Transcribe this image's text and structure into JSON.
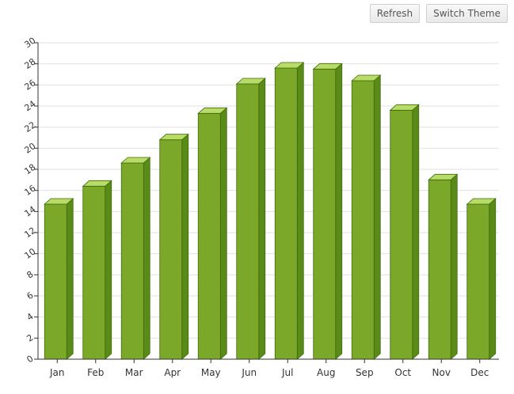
{
  "toolbar": {
    "refresh_label": "Refresh",
    "switch_theme_label": "Switch Theme"
  },
  "chart_data": {
    "type": "bar",
    "title": "",
    "xlabel": "",
    "ylabel": "",
    "categories": [
      "Jan",
      "Feb",
      "Mar",
      "Apr",
      "May",
      "Jun",
      "Jul",
      "Aug",
      "Sep",
      "Oct",
      "Nov",
      "Dec"
    ],
    "values": [
      14.7,
      16.4,
      18.6,
      20.8,
      23.3,
      26.1,
      27.6,
      27.5,
      26.4,
      23.6,
      17.0,
      14.7
    ],
    "ylim": [
      0,
      30
    ],
    "yticks": [
      "0",
      "2",
      "4",
      "6",
      "8",
      "10",
      "12",
      "14",
      "16",
      "18",
      "20",
      "22",
      "24",
      "26",
      "28",
      "30"
    ],
    "grid": true,
    "legend": "none",
    "colors": {
      "front": "#7ba828",
      "top": "#b9dc69",
      "side": "#5a8a17",
      "stroke": "#3f6a0c",
      "grid": "#e2e2e2",
      "axis": "#333333"
    }
  }
}
